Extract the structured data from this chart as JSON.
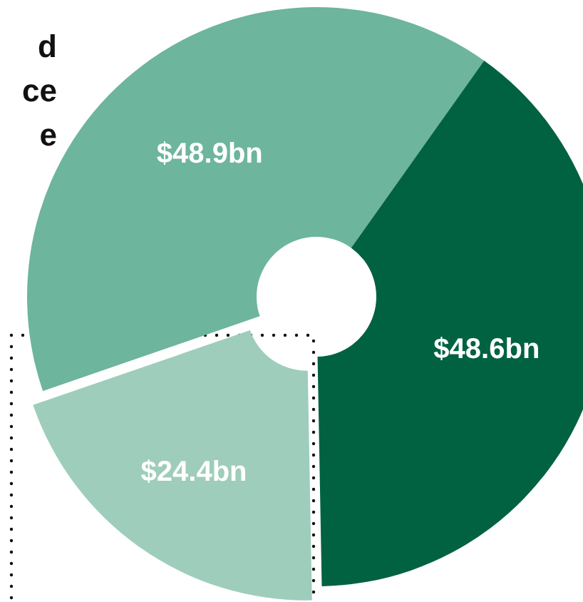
{
  "chart_data": {
    "type": "donut",
    "categories": [
      null,
      null,
      null
    ],
    "values": [
      48.9,
      48.6,
      24.4
    ],
    "value_labels": [
      "$48.9bn",
      "$48.6bn",
      "$24.4bn"
    ],
    "colors": [
      "#6db59c",
      "#006241",
      "#9ecdbb"
    ],
    "annotations": [
      "d",
      "ce",
      "e"
    ]
  }
}
